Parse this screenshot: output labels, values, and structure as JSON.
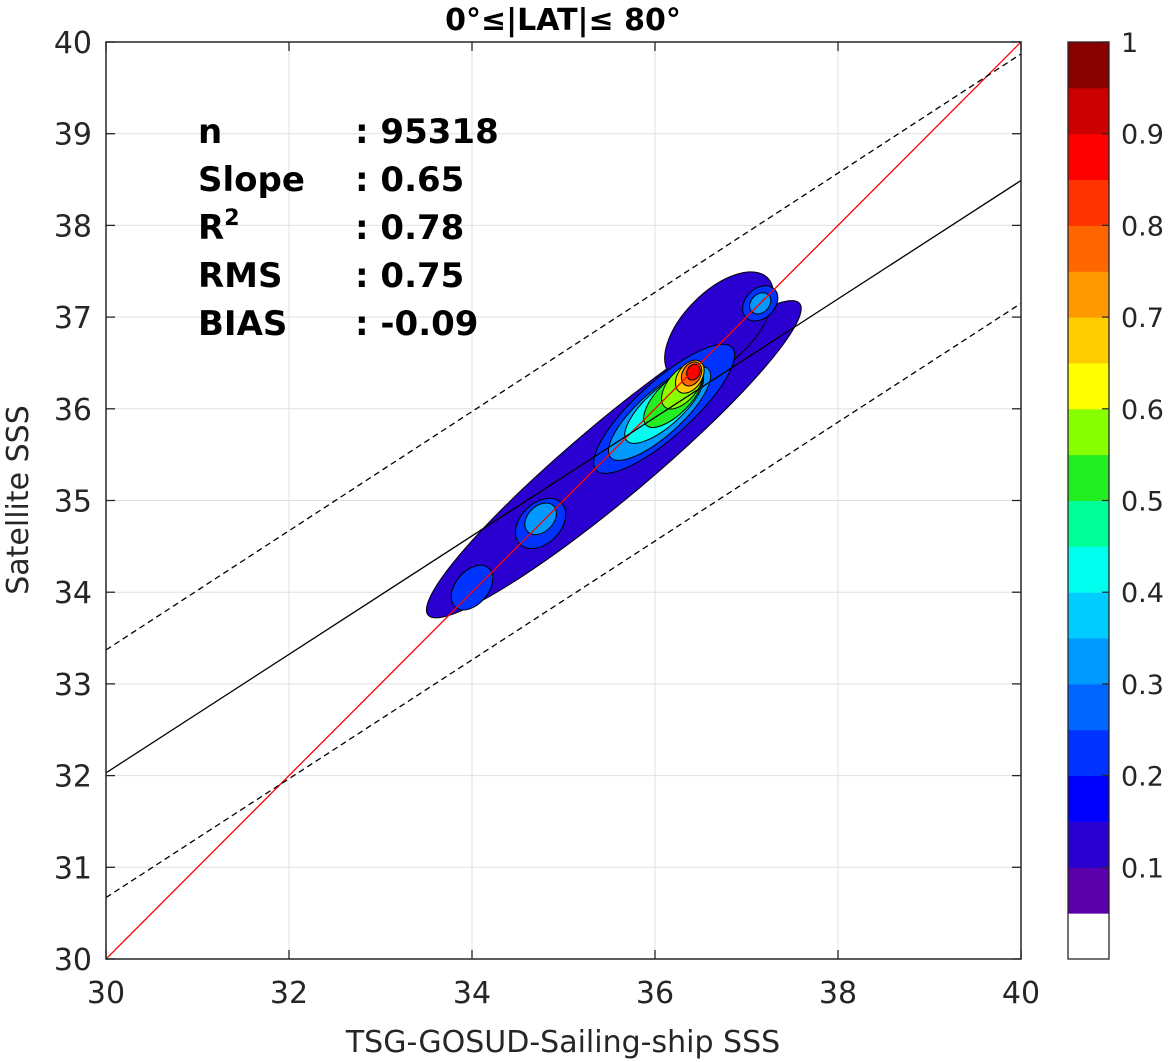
{
  "chart_data": {
    "type": "heatmap",
    "title": "0°≤|LAT|≤ 80°",
    "xlabel": "TSG-GOSUD-Sailing-ship SSS",
    "ylabel": "Satellite SSS",
    "xlim": [
      30,
      40
    ],
    "ylim": [
      30,
      40
    ],
    "xticks": [
      30,
      32,
      34,
      36,
      38,
      40
    ],
    "yticks": [
      30,
      31,
      32,
      33,
      34,
      35,
      36,
      37,
      38,
      39,
      40
    ],
    "grid": true,
    "stats": [
      {
        "label": "n",
        "value": ": 95318"
      },
      {
        "label": "Slope",
        "value": ": 0.65"
      },
      {
        "label": "R",
        "sup": "2",
        "value": ": 0.78"
      },
      {
        "label": "RMS",
        "value": ": 0.75"
      },
      {
        "label": "BIAS",
        "value": ": -0.09"
      }
    ],
    "lines": [
      {
        "type": "identity",
        "color": "#ff0000",
        "style": "solid",
        "x": [
          30,
          40
        ],
        "y": [
          30,
          40
        ]
      },
      {
        "type": "fit",
        "color": "#000000",
        "style": "solid",
        "x": [
          30,
          40
        ],
        "y": [
          32.03,
          38.49
        ]
      },
      {
        "type": "fit+rms",
        "color": "#000000",
        "style": "dashed",
        "x": [
          30,
          40
        ],
        "y": [
          33.37,
          39.87
        ]
      },
      {
        "type": "fit-rms",
        "color": "#000000",
        "style": "dashed",
        "x": [
          30,
          40
        ],
        "y": [
          30.67,
          37.15
        ]
      }
    ],
    "density_blobs": [
      {
        "cx": 35.55,
        "cy": 35.45,
        "rx": 2.65,
        "ry": 0.42,
        "angle_deg": 40,
        "level": 0.1
      },
      {
        "cx": 36.7,
        "cy": 36.9,
        "rx": 0.75,
        "ry": 0.38,
        "angle_deg": 45,
        "level": 0.1
      },
      {
        "cx": 36.1,
        "cy": 36.0,
        "rx": 1.0,
        "ry": 0.3,
        "angle_deg": 42,
        "level": 0.2
      },
      {
        "cx": 34.75,
        "cy": 34.75,
        "rx": 0.32,
        "ry": 0.22,
        "angle_deg": 45,
        "level": 0.2
      },
      {
        "cx": 34.0,
        "cy": 34.05,
        "rx": 0.28,
        "ry": 0.18,
        "angle_deg": 50,
        "level": 0.2
      },
      {
        "cx": 37.15,
        "cy": 37.15,
        "rx": 0.22,
        "ry": 0.16,
        "angle_deg": 45,
        "level": 0.2
      },
      {
        "cx": 36.05,
        "cy": 35.95,
        "rx": 0.72,
        "ry": 0.24,
        "angle_deg": 42,
        "level": 0.3
      },
      {
        "cx": 34.75,
        "cy": 34.8,
        "rx": 0.2,
        "ry": 0.14,
        "angle_deg": 45,
        "level": 0.3
      },
      {
        "cx": 37.15,
        "cy": 37.15,
        "rx": 0.13,
        "ry": 0.1,
        "angle_deg": 45,
        "level": 0.3
      },
      {
        "cx": 36.1,
        "cy": 36.02,
        "rx": 0.55,
        "ry": 0.2,
        "angle_deg": 42,
        "level": 0.4
      },
      {
        "cx": 36.2,
        "cy": 36.12,
        "rx": 0.42,
        "ry": 0.18,
        "angle_deg": 45,
        "level": 0.5
      },
      {
        "cx": 36.3,
        "cy": 36.25,
        "rx": 0.3,
        "ry": 0.16,
        "angle_deg": 50,
        "level": 0.6
      },
      {
        "cx": 36.38,
        "cy": 36.35,
        "rx": 0.2,
        "ry": 0.13,
        "angle_deg": 55,
        "level": 0.7
      },
      {
        "cx": 36.4,
        "cy": 36.38,
        "rx": 0.14,
        "ry": 0.1,
        "angle_deg": 60,
        "level": 0.8
      },
      {
        "cx": 36.42,
        "cy": 36.4,
        "rx": 0.09,
        "ry": 0.07,
        "angle_deg": 65,
        "level": 0.9
      }
    ],
    "colorbar": {
      "ticks": [
        "0.1",
        "0.2",
        "0.3",
        "0.4",
        "0.5",
        "0.6",
        "0.7",
        "0.8",
        "0.9",
        "1"
      ],
      "colors": [
        "#ffffff",
        "#5a00aa",
        "#2a00d0",
        "#0000ff",
        "#0033ff",
        "#0066ff",
        "#0099ff",
        "#00ccff",
        "#00ffee",
        "#00ff99",
        "#22ee22",
        "#88ff00",
        "#ffff00",
        "#ffcc00",
        "#ff9900",
        "#ff6600",
        "#ff3300",
        "#ff0000",
        "#cc0000",
        "#880000"
      ]
    }
  }
}
